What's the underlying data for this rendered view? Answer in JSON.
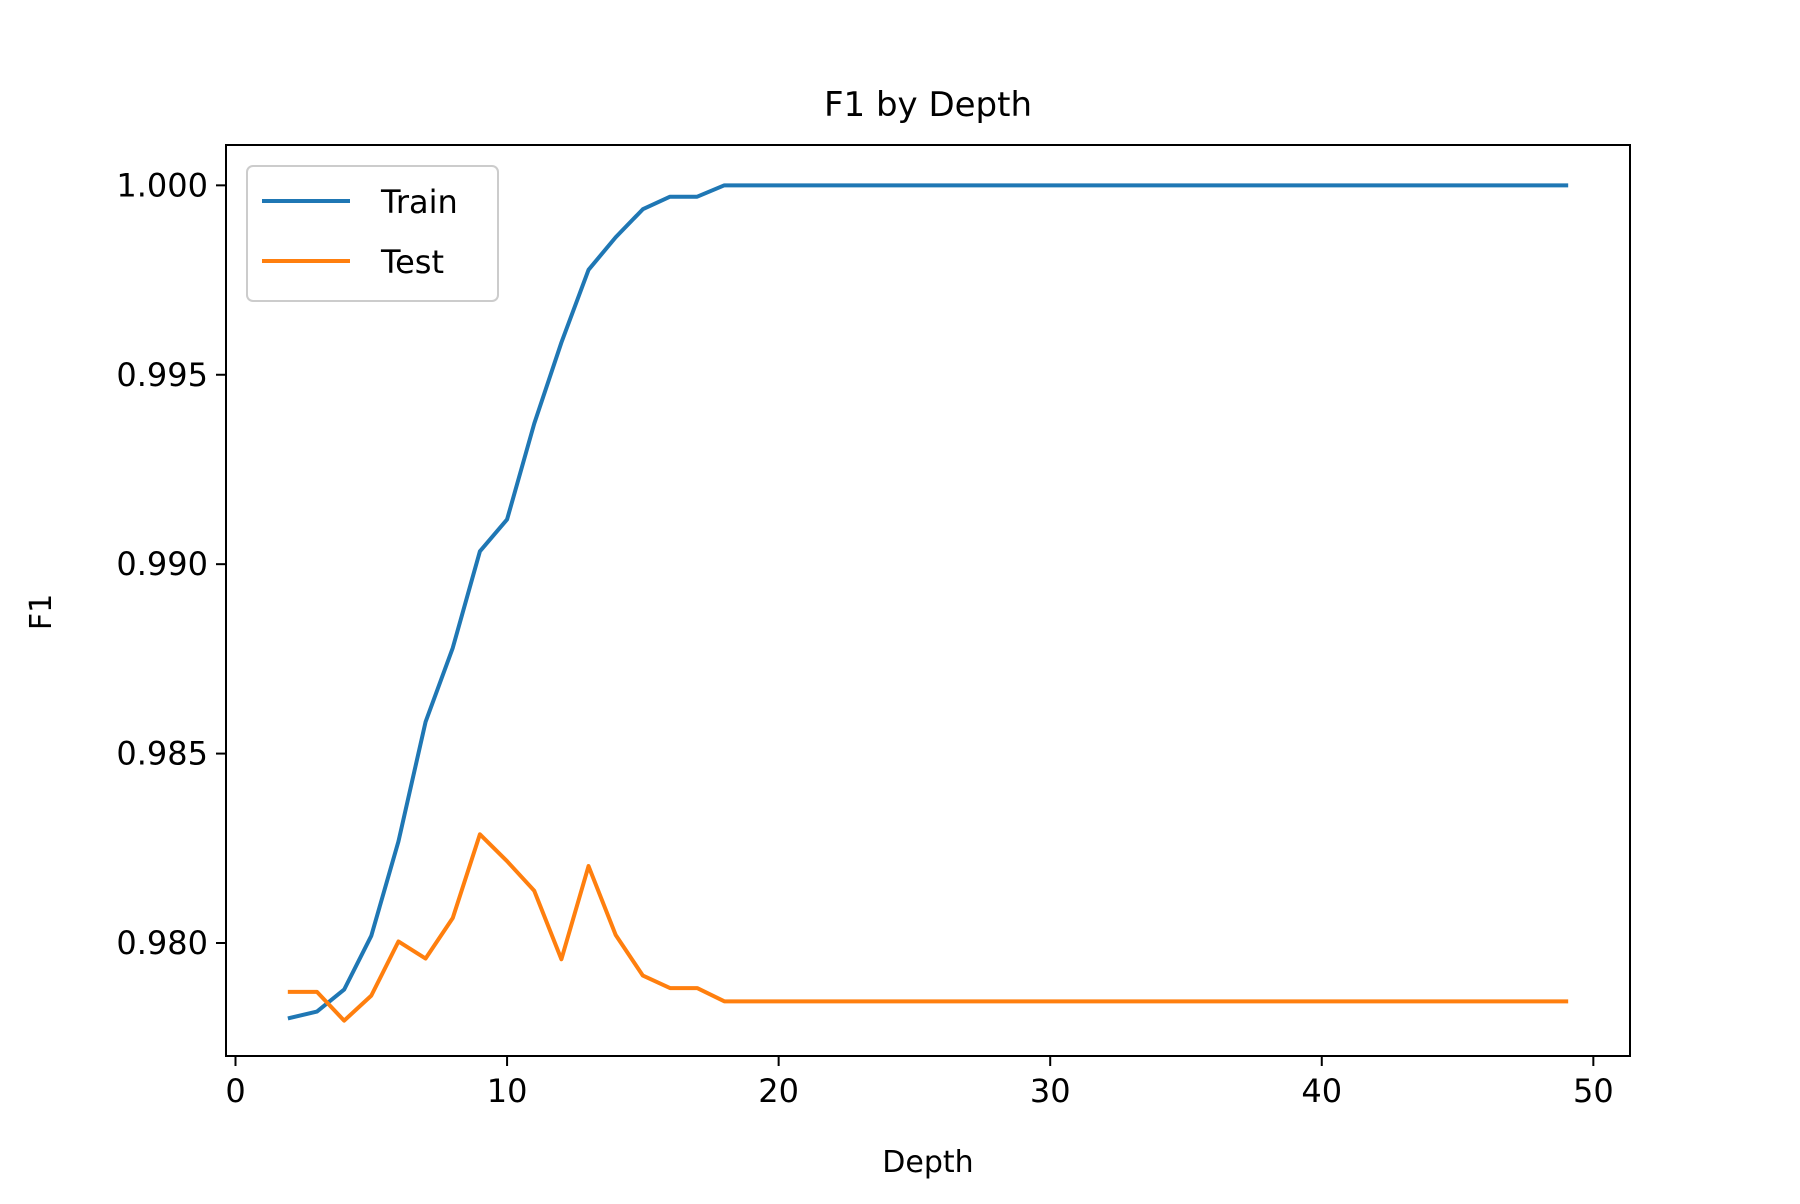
{
  "chart_data": {
    "type": "line",
    "title": "F1 by Depth",
    "xlabel": "Depth",
    "ylabel": "F1",
    "xlim": [
      -0.35,
      51.35
    ],
    "ylim": [
      0.977017,
      1.001065
    ],
    "xticks": [
      0,
      10,
      20,
      30,
      40,
      50
    ],
    "xtick_labels": [
      "0",
      "10",
      "20",
      "30",
      "40",
      "50"
    ],
    "yticks": [
      0.98,
      0.985,
      0.99,
      0.995,
      1.0
    ],
    "ytick_labels": [
      "0.980",
      "0.985",
      "0.990",
      "0.995",
      "1.000"
    ],
    "grid": false,
    "legend_position": "upper-left",
    "x": [
      2,
      3,
      4,
      5,
      6,
      7,
      8,
      9,
      10,
      11,
      12,
      13,
      14,
      15,
      16,
      17,
      18,
      19,
      20,
      21,
      22,
      23,
      24,
      25,
      26,
      27,
      28,
      29,
      30,
      31,
      32,
      33,
      34,
      35,
      36,
      37,
      38,
      39,
      40,
      41,
      42,
      43,
      44,
      45,
      46,
      47,
      48,
      49
    ],
    "series": [
      {
        "name": "Train",
        "color": "#1f77b4",
        "values": [
          0.97802,
          0.97819,
          0.97877,
          0.98019,
          0.98268,
          0.98584,
          0.98779,
          0.99034,
          0.99118,
          0.99371,
          0.99585,
          0.99777,
          0.99863,
          0.99937,
          0.9997,
          0.9997,
          1.0,
          1.0,
          1.0,
          1.0,
          1.0,
          1.0,
          1.0,
          1.0,
          1.0,
          1.0,
          1.0,
          1.0,
          1.0,
          1.0,
          1.0,
          1.0,
          1.0,
          1.0,
          1.0,
          1.0,
          1.0,
          1.0,
          1.0,
          1.0,
          1.0,
          1.0,
          1.0,
          1.0,
          1.0,
          1.0,
          1.0,
          1.0
        ]
      },
      {
        "name": "Test",
        "color": "#ff7f0e",
        "values": [
          0.97871,
          0.97871,
          0.97795,
          0.97861,
          0.98004,
          0.97959,
          0.98066,
          0.98287,
          0.98216,
          0.98138,
          0.97957,
          0.98203,
          0.98021,
          0.97914,
          0.97881,
          0.97881,
          0.97846,
          0.97846,
          0.97846,
          0.97846,
          0.97846,
          0.97846,
          0.97846,
          0.97846,
          0.97846,
          0.97846,
          0.97846,
          0.97846,
          0.97846,
          0.97846,
          0.97846,
          0.97846,
          0.97846,
          0.97846,
          0.97846,
          0.97846,
          0.97846,
          0.97846,
          0.97846,
          0.97846,
          0.97846,
          0.97846,
          0.97846,
          0.97846,
          0.97846,
          0.97846,
          0.97846,
          0.97846
        ]
      }
    ]
  }
}
